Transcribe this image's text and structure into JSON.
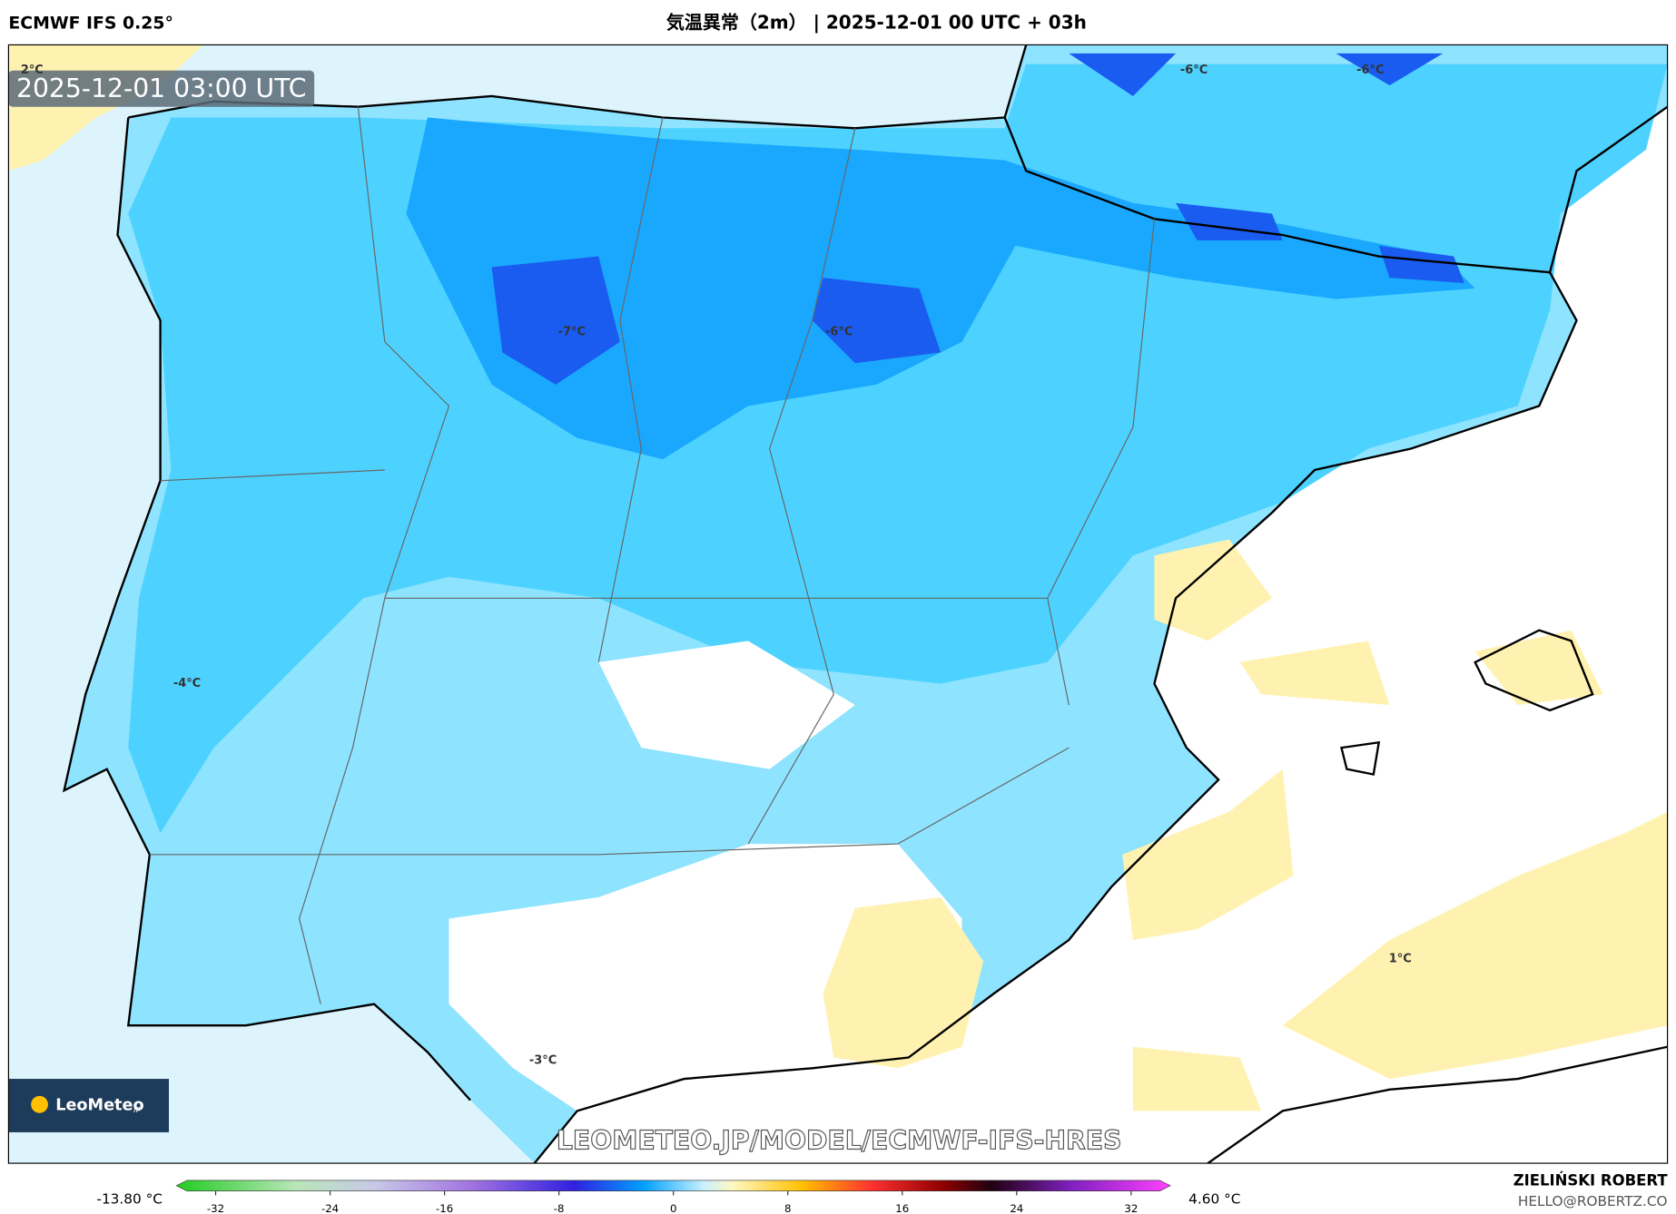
{
  "header": {
    "model": "ECMWF IFS 0.25°",
    "title": "気温異常（2m） | 2025-12-01 00 UTC + 03h"
  },
  "map": {
    "timestamp": "2025-12-01 03:00 UTC",
    "labels": [
      "2°C",
      "-6°C",
      "-6°C",
      "-7°C",
      "-6°C",
      "-4°C",
      "-3°C",
      "1°C"
    ],
    "watermark": "LEOMETEO.JP/MODEL/ECMWF-IFS-HRES",
    "logo": "LeoMeteo",
    "logo_suffix": "jp"
  },
  "colorbar": {
    "min_label": "-13.80 °C",
    "max_label": "4.60 °C",
    "range": [
      -34,
      34
    ],
    "ticks": [
      -32,
      -24,
      -16,
      -8,
      0,
      8,
      16,
      24,
      32
    ]
  },
  "footer": {
    "author": "ZIELIŃSKI ROBERT",
    "email": "HELLO@ROBERTZ.CO"
  }
}
